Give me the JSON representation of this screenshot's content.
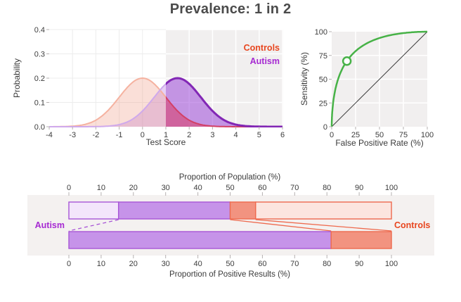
{
  "title": "Prevalence: 1 in 2",
  "colors": {
    "controls_accent": "#e8461f",
    "autism_accent": "#a62ad2",
    "controls_bar_fill": "#f29380",
    "controls_bar_border": "#ee6a4e",
    "controls_bar_light_fill": "#fce5df",
    "autism_bar_fill": "#c693e9",
    "autism_bar_border": "#a855d6",
    "autism_bar_light_fill": "#f3e5fb",
    "roc_green": "#47b247",
    "diagonal_gray": "#3c3c3c",
    "plot_bg_gray": "#f1efef",
    "band_bg_gray": "#f4f1f0",
    "controls_curve_light": "#f5b2a0",
    "controls_curve_dark": "#d34066",
    "controls_area_light": "#f0957e",
    "controls_area_dark": "#d83a64",
    "autism_curve_light": "#cfa9ec",
    "autism_curve_dark": "#8227b5",
    "autism_area_light": "#b06ce0",
    "autism_area_dark": "#9a41d8",
    "tick_color": "#b5b0b0",
    "grid_on_white": "#ececec",
    "grid_on_gray": "#ffffff"
  },
  "chart_data": [
    {
      "type": "area",
      "name": "score-distributions",
      "xlabel": "Test Score",
      "ylabel": "Probability",
      "xlim": [
        -4,
        6
      ],
      "ylim": [
        0,
        0.4
      ],
      "x_ticks": [
        -4,
        -3,
        -2,
        -1,
        0,
        1,
        2,
        3,
        4,
        5,
        6
      ],
      "y_ticks": [
        "0.0",
        "0.1",
        "0.2",
        "0.3",
        "0.4"
      ],
      "threshold": 1,
      "series": [
        {
          "name": "Controls",
          "distribution": "normal",
          "mean": 0,
          "sd": 1,
          "peak": 0.2
        },
        {
          "name": "Autism",
          "distribution": "normal",
          "mean": 1.5,
          "sd": 1,
          "peak": 0.2
        }
      ],
      "legend": [
        "Controls",
        "Autism"
      ]
    },
    {
      "type": "line",
      "name": "roc-curve",
      "xlabel": "False Positive Rate (%)",
      "ylabel": "Sensitivity (%)",
      "xlim": [
        0,
        100
      ],
      "ylim": [
        0,
        100
      ],
      "x_ticks": [
        0,
        25,
        50,
        75,
        100
      ],
      "y_ticks": [
        0,
        25,
        50,
        75,
        100
      ],
      "separation_d_prime": 1.5,
      "operating_point": {
        "fpr": 15.9,
        "sensitivity": 69.1
      },
      "diagonal": true
    },
    {
      "type": "bar",
      "name": "population-breakdown",
      "top_axis_label": "Proportion of Population (%)",
      "bottom_axis_label": "Proportion of Positive Results (%)",
      "ticks": [
        0,
        10,
        20,
        30,
        40,
        50,
        60,
        70,
        80,
        90,
        100
      ],
      "left_label": "Autism",
      "right_label": "Controls",
      "population_bar": [
        {
          "group": "Autism",
          "result": "negative",
          "from": 0,
          "to": 15.4,
          "style": "autism_light"
        },
        {
          "group": "Autism",
          "result": "positive",
          "from": 15.4,
          "to": 50,
          "style": "autism"
        },
        {
          "group": "Controls",
          "result": "positive",
          "from": 50,
          "to": 57.9,
          "style": "controls"
        },
        {
          "group": "Controls",
          "result": "negative",
          "from": 57.9,
          "to": 100,
          "style": "controls_light"
        }
      ],
      "positive_results_bar": [
        {
          "group": "Autism",
          "from": 0,
          "to": 81.3,
          "style": "autism"
        },
        {
          "group": "Controls",
          "from": 81.3,
          "to": 100,
          "style": "controls"
        }
      ],
      "connectors": [
        {
          "from_pct": 15.4,
          "to_pct": 0,
          "style": "autism-dashed"
        },
        {
          "from_pct": 57.9,
          "to_pct": 100,
          "style": "controls-solid"
        },
        {
          "from_pct": 50,
          "to_pct": 81.3,
          "style": "controls-solid"
        }
      ]
    }
  ]
}
